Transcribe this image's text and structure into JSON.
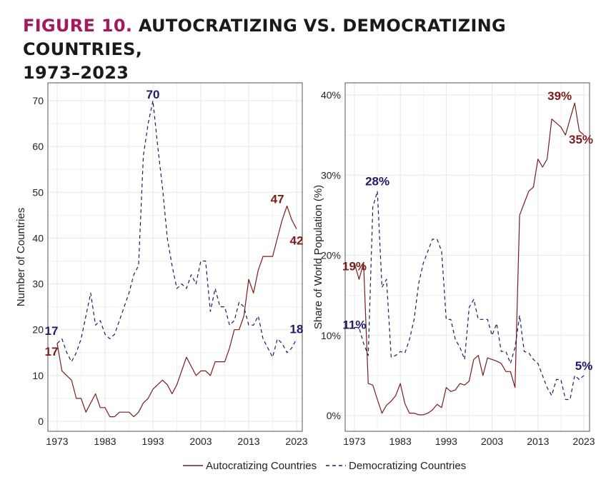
{
  "figure": {
    "label": "FIGURE 10.",
    "title": "AUTOCRATIZING VS. DEMOCRATIZING COUNTRIES,",
    "title_line2": "1973–2023"
  },
  "colors": {
    "autocratizing": "#7b1c1c",
    "democratizing": "#1f1a66",
    "grid": "#e6e6e6",
    "axis": "#555555"
  },
  "legend": {
    "items": [
      "Autocratizing Countries",
      "Democratizing Countries"
    ]
  },
  "chart_data": [
    {
      "type": "line",
      "ylabel": "Number of Countries",
      "xlim": [
        1973,
        2023
      ],
      "ylim": [
        0,
        70
      ],
      "xticks": [
        1973,
        1983,
        1993,
        2003,
        2013,
        2023
      ],
      "yticks": [
        0,
        10,
        20,
        30,
        40,
        50,
        60,
        70
      ],
      "x": [
        1973,
        1974,
        1975,
        1976,
        1977,
        1978,
        1979,
        1980,
        1981,
        1982,
        1983,
        1984,
        1985,
        1986,
        1987,
        1988,
        1989,
        1990,
        1991,
        1992,
        1993,
        1994,
        1995,
        1996,
        1997,
        1998,
        1999,
        2000,
        2001,
        2002,
        2003,
        2004,
        2005,
        2006,
        2007,
        2008,
        2009,
        2010,
        2011,
        2012,
        2013,
        2014,
        2015,
        2016,
        2017,
        2018,
        2019,
        2020,
        2021,
        2022,
        2023
      ],
      "series": [
        {
          "name": "Autocratizing Countries",
          "values": [
            17,
            11,
            10,
            9,
            5,
            5,
            2,
            4,
            6,
            3,
            3,
            1,
            1,
            2,
            2,
            2,
            1,
            2,
            4,
            5,
            7,
            8,
            9,
            8,
            6,
            8,
            11,
            14,
            12,
            10,
            11,
            11,
            10,
            13,
            13,
            13,
            16,
            20,
            20,
            23,
            31,
            28,
            33,
            36,
            36,
            36,
            40,
            44,
            47,
            44,
            42
          ]
        },
        {
          "name": "Democratizing Countries",
          "values": [
            17,
            18,
            15,
            13,
            15,
            18,
            23,
            28,
            21,
            22,
            19,
            18,
            19,
            22,
            25,
            28,
            32,
            34,
            58,
            65,
            70,
            60,
            51,
            40,
            34,
            29,
            30,
            29,
            32,
            30,
            35,
            35,
            24,
            29,
            25,
            25,
            21,
            22,
            26,
            25,
            21,
            21,
            23,
            18,
            16,
            14,
            18,
            17,
            15,
            16,
            18
          ]
        }
      ],
      "annotations": [
        {
          "text": "17",
          "series": "Autocratizing Countries",
          "x": 1973,
          "y": 17
        },
        {
          "text": "17",
          "series": "Democratizing Countries",
          "x": 1973,
          "y": 17
        },
        {
          "text": "70",
          "series": "Democratizing Countries",
          "x": 1993,
          "y": 70
        },
        {
          "text": "47",
          "series": "Autocratizing Countries",
          "x": 2021,
          "y": 47
        },
        {
          "text": "42",
          "series": "Autocratizing Countries",
          "x": 2023,
          "y": 42
        },
        {
          "text": "18",
          "series": "Democratizing Countries",
          "x": 2023,
          "y": 18
        }
      ]
    },
    {
      "type": "line",
      "ylabel": "Share of World Population (%)",
      "xlim": [
        1973,
        2023
      ],
      "ylim": [
        0,
        40
      ],
      "xticks": [
        1973,
        1983,
        1993,
        2003,
        2013,
        2023
      ],
      "yticks": [
        0,
        10,
        20,
        30,
        40
      ],
      "ytick_labels": [
        "0%",
        "10%",
        "20%",
        "30%",
        "40%"
      ],
      "x": [
        1973,
        1974,
        1975,
        1976,
        1977,
        1978,
        1979,
        1980,
        1981,
        1982,
        1983,
        1984,
        1985,
        1986,
        1987,
        1988,
        1989,
        1990,
        1991,
        1992,
        1993,
        1994,
        1995,
        1996,
        1997,
        1998,
        1999,
        2000,
        2001,
        2002,
        2003,
        2004,
        2005,
        2006,
        2007,
        2008,
        2009,
        2010,
        2011,
        2012,
        2013,
        2014,
        2015,
        2016,
        2017,
        2018,
        2019,
        2020,
        2021,
        2022,
        2023
      ],
      "series": [
        {
          "name": "Autocratizing Countries",
          "values": [
            19,
            17,
            19,
            4,
            3.8,
            2,
            0.3,
            1.3,
            1.8,
            2.5,
            4,
            1.5,
            0.3,
            0.3,
            0.1,
            0.1,
            0.3,
            0.7,
            1.4,
            1,
            3.5,
            3,
            3.2,
            4,
            3.8,
            4.3,
            7,
            7.5,
            5,
            7.2,
            7,
            6.8,
            6.5,
            5.5,
            5.5,
            3.5,
            25,
            26.5,
            28,
            28.5,
            32,
            31,
            32,
            37,
            36.5,
            36,
            35,
            37,
            39,
            35.5,
            35
          ]
        },
        {
          "name": "Democratizing Countries",
          "values": [
            11,
            11,
            9,
            7.5,
            26,
            28,
            16,
            17,
            7.3,
            7.5,
            8,
            7.8,
            9.5,
            12,
            16.5,
            19,
            20.5,
            22,
            22,
            20.5,
            12,
            12,
            9.5,
            8.5,
            7,
            13.5,
            14.5,
            12,
            12,
            12,
            10,
            11.5,
            8,
            8,
            6.5,
            8.5,
            12.5,
            8,
            7.8,
            7,
            6.5,
            5,
            3.5,
            2.5,
            4.5,
            4.5,
            2,
            2,
            5,
            4.5,
            5
          ]
        }
      ],
      "annotations": [
        {
          "text": "19%",
          "series": "Autocratizing Countries",
          "x": 1973,
          "y": 19
        },
        {
          "text": "11%",
          "series": "Democratizing Countries",
          "x": 1973,
          "y": 11
        },
        {
          "text": "28%",
          "series": "Democratizing Countries",
          "x": 1978,
          "y": 28
        },
        {
          "text": "39%",
          "series": "Autocratizing Countries",
          "x": 2021,
          "y": 39
        },
        {
          "text": "35%",
          "series": "Autocratizing Countries",
          "x": 2023,
          "y": 35
        },
        {
          "text": "5%",
          "series": "Democratizing Countries",
          "x": 2023,
          "y": 5
        }
      ]
    }
  ]
}
